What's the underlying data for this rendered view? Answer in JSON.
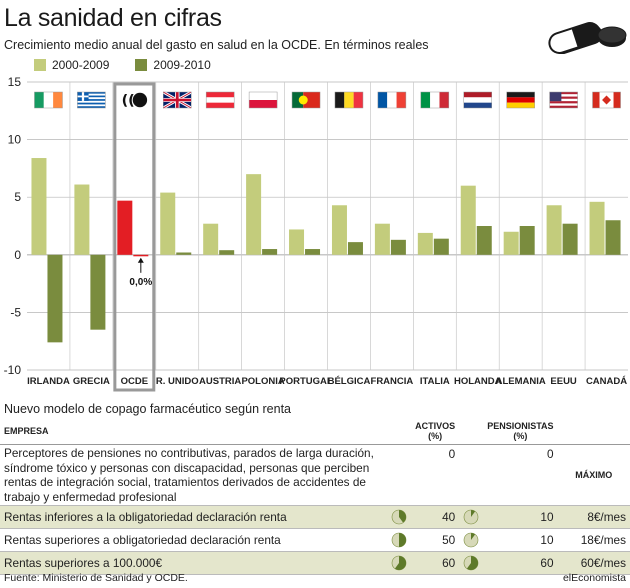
{
  "title": "La sanidad en cifras",
  "subtitle": "Crecimiento medio anual del gasto en salud en la OCDE. En términos reales",
  "legend": [
    {
      "label": "2000-2009",
      "color": "#c3cc7c"
    },
    {
      "label": "2009-2010",
      "color": "#7a8c3e"
    }
  ],
  "chart_data": {
    "type": "bar",
    "title": "La sanidad en cifras",
    "categories": [
      "IRLANDA",
      "GRECIA",
      "OCDE",
      "R. UNIDO",
      "AUSTRIA",
      "POLONIA",
      "PORTUGAL",
      "BÉLGICA",
      "FRANCIA",
      "ITALIA",
      "HOLANDA",
      "ALEMANIA",
      "EEUU",
      "CANADÁ"
    ],
    "series": [
      {
        "name": "2000-2009",
        "color": "#c3cc7c",
        "values": [
          8.4,
          6.1,
          4.7,
          5.4,
          2.7,
          7.0,
          2.2,
          4.3,
          2.7,
          1.9,
          6.0,
          2.0,
          4.3,
          4.6
        ]
      },
      {
        "name": "2009-2010",
        "color": "#7a8c3e",
        "values": [
          -7.6,
          -6.5,
          0.0,
          0.2,
          0.4,
          0.5,
          0.5,
          1.1,
          1.3,
          1.4,
          2.5,
          2.5,
          2.7,
          3.0
        ]
      }
    ],
    "highlight": {
      "category": "OCDE",
      "color": "#e31e24"
    },
    "annotation": "0,0%",
    "yticks": [
      15,
      10,
      5,
      0,
      -5,
      -10
    ],
    "ylim": [
      -10,
      15
    ],
    "grid": true
  },
  "flags": [
    "ireland",
    "greece",
    "oecd",
    "uk",
    "austria",
    "poland",
    "portugal",
    "belgium",
    "france",
    "italy",
    "netherlands",
    "germany",
    "usa",
    "canada"
  ],
  "copago": {
    "section_title": "Nuevo modelo de copago farmacéutico según renta",
    "headers": {
      "empresa": "EMPRESA",
      "activos": "ACTIVOS (%)",
      "pensionistas": "PENSIONISTAS (%)",
      "maximo": "MÁXIMO"
    },
    "first_row": {
      "text": "Perceptores de pensiones no contributivas, parados de larga duración, síndrome tóxico y personas con discapacidad, personas que perciben rentas de integración social, tratamientos derivados de accidentes de trabajo y enfermedad profesional",
      "activos": "0",
      "pensionistas": "0"
    },
    "rows": [
      {
        "label": "Rentas inferiores a la obligatoriedad declaración renta",
        "activos": "40",
        "activos_frac": 0.4,
        "pensionistas": "10",
        "pensionistas_frac": 0.1,
        "maximo": "8€/mes"
      },
      {
        "label": "Rentas superiores a obligatoriedad declaración renta",
        "activos": "50",
        "activos_frac": 0.5,
        "pensionistas": "10",
        "pensionistas_frac": 0.1,
        "maximo": "18€/mes"
      },
      {
        "label": "Rentas superiores a 100.000€",
        "activos": "60",
        "activos_frac": 0.6,
        "pensionistas": "60",
        "pensionistas_frac": 0.6,
        "maximo": "60€/mes"
      }
    ]
  },
  "source": "Fuente: Ministerio de Sanidad y OCDE.",
  "brand": "elEconomista"
}
